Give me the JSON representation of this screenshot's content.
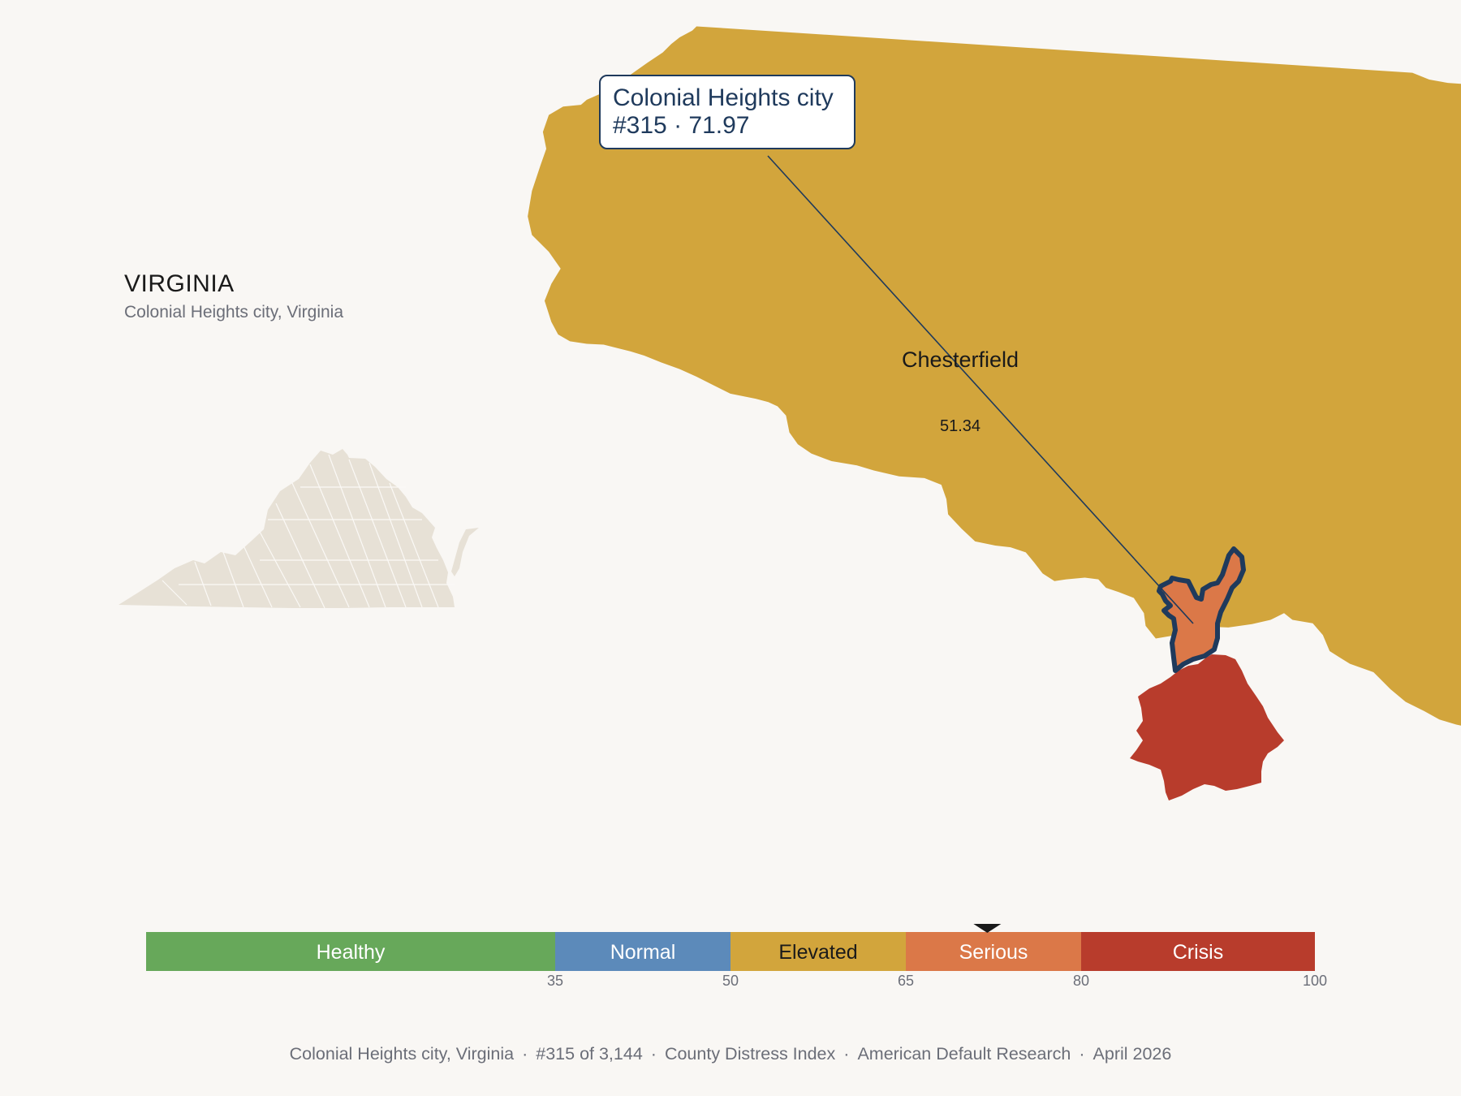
{
  "state": {
    "name": "VIRGINIA",
    "subtitle": "Colonial Heights city, Virginia"
  },
  "callout": {
    "name": "Colonial Heights city",
    "rank_value": "#315 · 71.97"
  },
  "map": {
    "neighbor_name": "Chesterfield",
    "neighbor_value": "51.34",
    "colors": {
      "chesterfield": "#d2a53c",
      "colonial_heights": "#db7848",
      "south_county": "#b83c2c",
      "highlight_outline": "#1f3a5c",
      "state_locator": "#e7e1d6"
    }
  },
  "legend": {
    "marker_value": 71.97,
    "domain": [
      0,
      100
    ],
    "segments": [
      {
        "label": "Healthy",
        "from": 0,
        "to": 35,
        "color": "#67a85a",
        "text_color": "#ffffff"
      },
      {
        "label": "Normal",
        "from": 35,
        "to": 50,
        "color": "#5c8aba",
        "text_color": "#ffffff"
      },
      {
        "label": "Elevated",
        "from": 50,
        "to": 65,
        "color": "#d2a53c",
        "text_color": "#1a1a1a"
      },
      {
        "label": "Serious",
        "from": 65,
        "to": 80,
        "color": "#db7848",
        "text_color": "#ffffff"
      },
      {
        "label": "Crisis",
        "from": 80,
        "to": 100,
        "color": "#b83c2c",
        "text_color": "#ffffff"
      }
    ],
    "ticks": [
      "35",
      "50",
      "65",
      "80",
      "100"
    ]
  },
  "footer": {
    "place": "Colonial Heights city, Virginia",
    "rank": "#315 of 3,144",
    "index": "County Distress Index",
    "source": "American Default Research",
    "date": "April 2026"
  }
}
